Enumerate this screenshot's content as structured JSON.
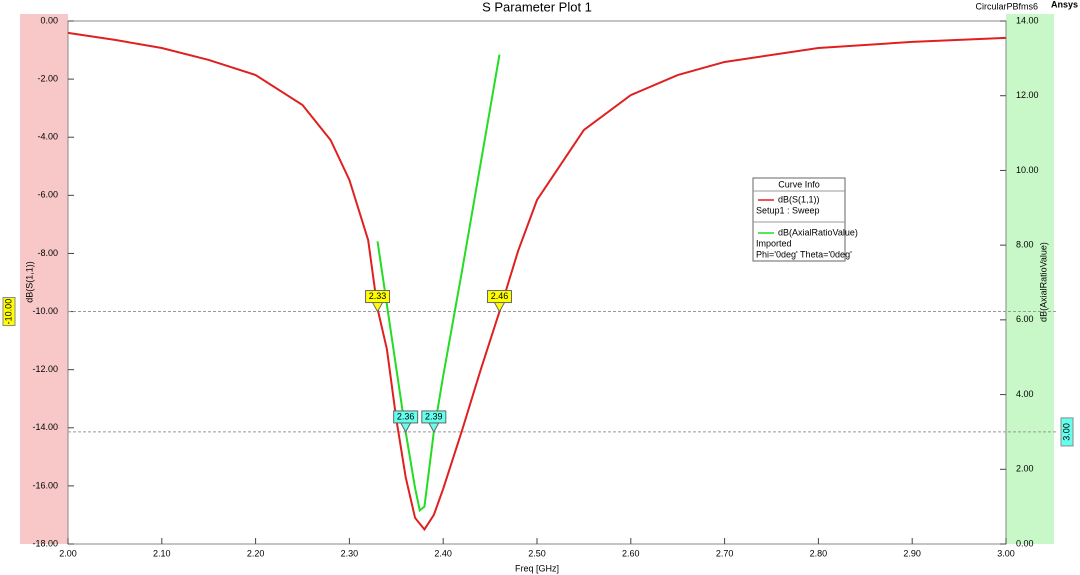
{
  "chart_data": {
    "type": "line",
    "title": "S Parameter Plot 1",
    "project": "CircularPBfms6",
    "brand": "Ansys",
    "xlabel": "Freq [GHz]",
    "ylabel": "dB(S(1,1))",
    "y2label": "dB(AxialRatioValue)",
    "legend_title": "Curve Info",
    "legend_position": "upper right",
    "xlim": [
      2.0,
      3.0
    ],
    "ylim": [
      -18,
      0
    ],
    "y2lim": [
      0,
      14
    ],
    "xticks": [
      {
        "value": 2.0,
        "label": "2.00"
      },
      {
        "value": 2.1,
        "label": "2.10"
      },
      {
        "value": 2.2,
        "label": "2.20"
      },
      {
        "value": 2.3,
        "label": "2.30"
      },
      {
        "value": 2.4,
        "label": "2.40"
      },
      {
        "value": 2.5,
        "label": "2.50"
      },
      {
        "value": 2.6,
        "label": "2.60"
      },
      {
        "value": 2.7,
        "label": "2.70"
      },
      {
        "value": 2.8,
        "label": "2.80"
      },
      {
        "value": 2.9,
        "label": "2.90"
      },
      {
        "value": 3.0,
        "label": "3.00"
      }
    ],
    "yticks": [
      {
        "value": 0,
        "label": "0.00"
      },
      {
        "value": -2,
        "label": "-2.00"
      },
      {
        "value": -4,
        "label": "-4.00"
      },
      {
        "value": -6,
        "label": "-6.00"
      },
      {
        "value": -8,
        "label": "-8.00"
      },
      {
        "value": -10,
        "label": "-10.00"
      },
      {
        "value": -12,
        "label": "-12.00"
      },
      {
        "value": -14,
        "label": "-14.00"
      },
      {
        "value": -16,
        "label": "-16.00"
      },
      {
        "value": -18,
        "label": "-18.00"
      }
    ],
    "y2ticks": [
      {
        "value": 0,
        "label": "0.00"
      },
      {
        "value": 2,
        "label": "2.00"
      },
      {
        "value": 4,
        "label": "4.00"
      },
      {
        "value": 6,
        "label": "6.00"
      },
      {
        "value": 8,
        "label": "8.00"
      },
      {
        "value": 10,
        "label": "10.00"
      },
      {
        "value": 12,
        "label": "12.00"
      },
      {
        "value": 14,
        "label": "14.00"
      }
    ],
    "series": [
      {
        "name": "dB(S(1,1))",
        "source": "Setup1 : Sweep",
        "color": "#e02020",
        "x": [
          2.0,
          2.05,
          2.1,
          2.15,
          2.2,
          2.25,
          2.28,
          2.3,
          2.32,
          2.33,
          2.34,
          2.35,
          2.36,
          2.37,
          2.38,
          2.39,
          2.4,
          2.42,
          2.44,
          2.46,
          2.48,
          2.5,
          2.55,
          2.6,
          2.65,
          2.7,
          2.8,
          2.9,
          3.0
        ],
        "values": [
          -0.41,
          -0.65,
          -0.93,
          -1.34,
          -1.86,
          -2.89,
          -4.1,
          -5.47,
          -7.54,
          -9.9,
          -11.3,
          -13.7,
          -15.7,
          -17.1,
          -17.5,
          -17.0,
          -16.1,
          -14.1,
          -12.0,
          -10.0,
          -7.9,
          -6.16,
          -3.75,
          -2.55,
          -1.86,
          -1.41,
          -0.93,
          -0.72,
          -0.58
        ]
      },
      {
        "name": "dB(AxialRatioValue)",
        "source": "Imported",
        "variation": "Phi='0deg' Theta='0deg'",
        "color": "#22dd22",
        "axis": "y2",
        "x": [
          2.33,
          2.34,
          2.35,
          2.36,
          2.37,
          2.375,
          2.38,
          2.39,
          2.4,
          2.42,
          2.44,
          2.46
        ],
        "values": [
          8.1,
          6.4,
          4.7,
          3.0,
          1.5,
          0.9,
          1.0,
          3.0,
          4.5,
          7.3,
          10.2,
          13.1
        ]
      }
    ],
    "reference_lines": [
      {
        "value": -10,
        "label": "-10.00",
        "axis": "y",
        "color": "#ffff00"
      },
      {
        "value": 3,
        "label": "3.00",
        "axis": "y2",
        "color": "#66ffee"
      }
    ],
    "markers": [
      {
        "x": 2.33,
        "y": -10,
        "axis": "y",
        "color": "#ffff00"
      },
      {
        "x": 2.46,
        "y": -10,
        "axis": "y",
        "color": "#ffff00"
      },
      {
        "x": 2.36,
        "y": 3,
        "axis": "y2",
        "color": "#66ffee"
      },
      {
        "x": 2.39,
        "y": 3,
        "axis": "y2",
        "color": "#66ffee"
      }
    ]
  }
}
